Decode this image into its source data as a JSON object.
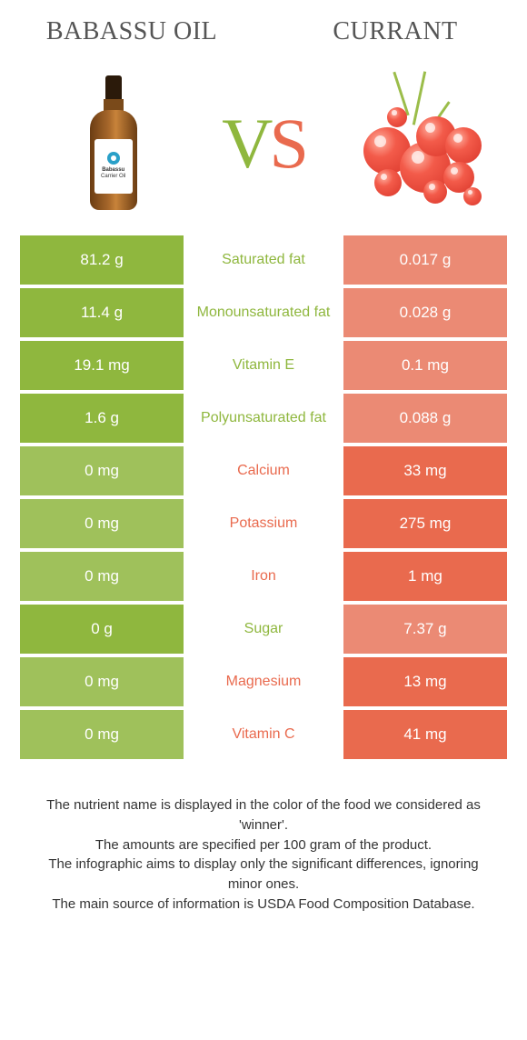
{
  "colors": {
    "green": "#8fb73e",
    "orange": "#e96a4e",
    "green_dim": "#9fc15b",
    "orange_dim": "#eb8a74"
  },
  "header": {
    "left": "Babassu oil",
    "right": "Currant"
  },
  "vs": {
    "v": "V",
    "s": "S"
  },
  "bottle_label": {
    "line1": "Babassu",
    "line2": "Carrier Oil"
  },
  "rows": [
    {
      "left": "81.2 g",
      "label": "Saturated fat",
      "right": "0.017 g",
      "winner": "left"
    },
    {
      "left": "11.4 g",
      "label": "Monounsaturated fat",
      "right": "0.028 g",
      "winner": "left"
    },
    {
      "left": "19.1 mg",
      "label": "Vitamin E",
      "right": "0.1 mg",
      "winner": "left"
    },
    {
      "left": "1.6 g",
      "label": "Polyunsaturated fat",
      "right": "0.088 g",
      "winner": "left"
    },
    {
      "left": "0 mg",
      "label": "Calcium",
      "right": "33 mg",
      "winner": "right"
    },
    {
      "left": "0 mg",
      "label": "Potassium",
      "right": "275 mg",
      "winner": "right"
    },
    {
      "left": "0 mg",
      "label": "Iron",
      "right": "1 mg",
      "winner": "right"
    },
    {
      "left": "0 g",
      "label": "Sugar",
      "right": "7.37 g",
      "winner": "left"
    },
    {
      "left": "0 mg",
      "label": "Magnesium",
      "right": "13 mg",
      "winner": "right"
    },
    {
      "left": "0 mg",
      "label": "Vitamin C",
      "right": "41 mg",
      "winner": "right"
    }
  ],
  "footer": {
    "l1": "The nutrient name is displayed in the color of the food we considered as 'winner'.",
    "l2": "The amounts are specified per 100 gram of the product.",
    "l3": "The infographic aims to display only the significant differences, ignoring minor ones.",
    "l4": "The main source of information is USDA Food Composition Database."
  }
}
